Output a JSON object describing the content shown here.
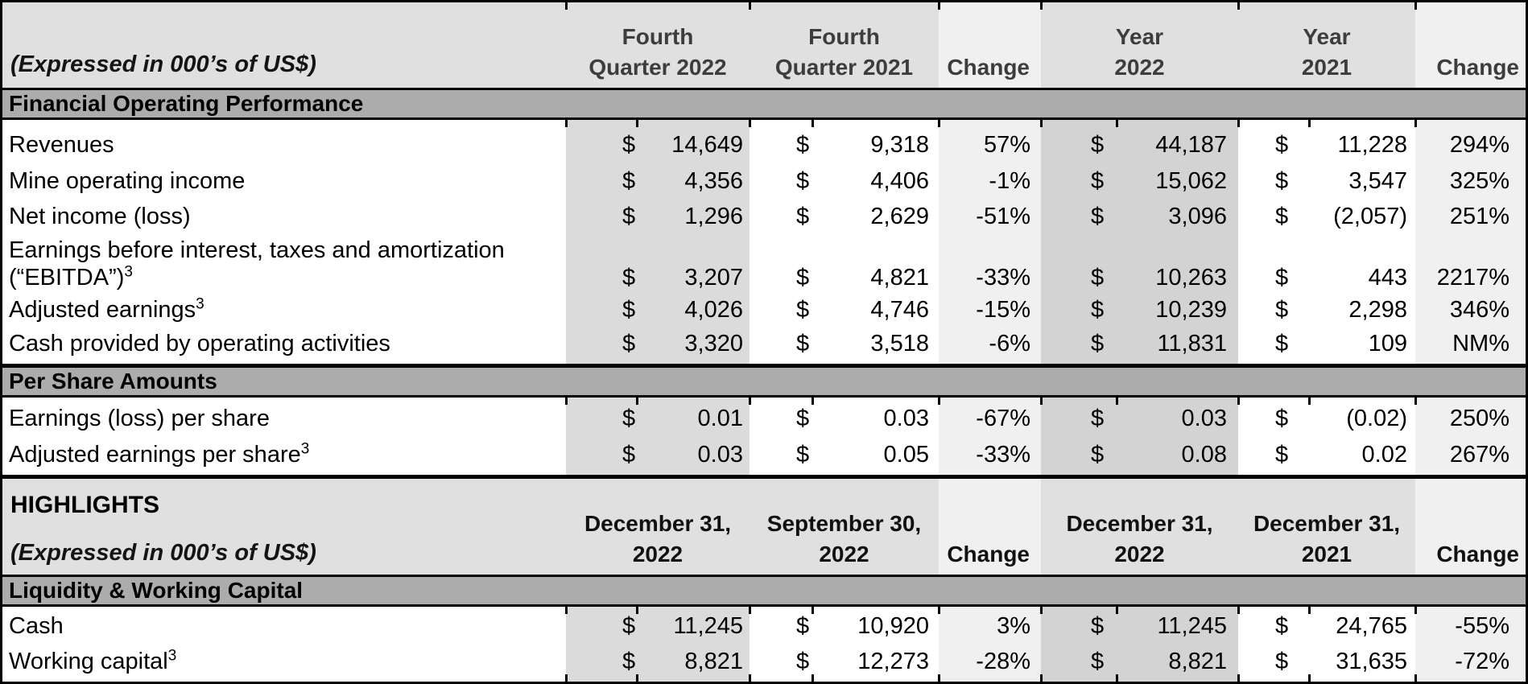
{
  "currency": "$",
  "colors": {
    "header_band": "#E0E0E0",
    "section_band": "#ACACAC",
    "primary_column_band": "#DBDBDB",
    "year_column_band": "#D3D3D3",
    "change_column_band": "#F0F0F0",
    "border": "#000000"
  },
  "table1": {
    "header": {
      "label": "(Expressed in 000’s of US$)",
      "columns": [
        {
          "line1": "Fourth",
          "line2": "Quarter 2022"
        },
        {
          "line1": "Fourth",
          "line2": "Quarter 2021"
        },
        {
          "label": "Change"
        },
        {
          "line1": "Year",
          "line2": "2022"
        },
        {
          "line1": "Year",
          "line2": "2021"
        },
        {
          "label": "Change"
        }
      ]
    },
    "sections": [
      {
        "title": "Financial Operating Performance",
        "rows": [
          {
            "label": "Revenues",
            "values": [
              "14,649",
              "9,318",
              "57%",
              "44,187",
              "11,228",
              "294%"
            ]
          },
          {
            "label": "Mine operating income",
            "values": [
              "4,356",
              "4,406",
              "-1%",
              "15,062",
              "3,547",
              "325%"
            ]
          },
          {
            "label": "Net income (loss)",
            "values": [
              "1,296",
              "2,629",
              "-51%",
              "3,096",
              "(2,057)",
              "251%"
            ]
          },
          {
            "label_line1": "Earnings before interest, taxes and amortization",
            "label": "(“EBITDA”)",
            "sup": "3",
            "values": [
              "3,207",
              "4,821",
              "-33%",
              "10,263",
              "443",
              "2217%"
            ]
          },
          {
            "label": "Adjusted earnings",
            "sup": "3",
            "values": [
              "4,026",
              "4,746",
              "-15%",
              "10,239",
              "2,298",
              "346%"
            ]
          },
          {
            "label": "Cash provided by operating activities",
            "values": [
              "3,320",
              "3,518",
              "-6%",
              "11,831",
              "109",
              "NM%"
            ]
          }
        ]
      },
      {
        "title": "Per Share Amounts",
        "rows": [
          {
            "label": "Earnings (loss) per share",
            "values": [
              "0.01",
              "0.03",
              "-67%",
              "0.03",
              "(0.02)",
              "250%"
            ]
          },
          {
            "label": "Adjusted earnings per share",
            "sup": "3",
            "values": [
              "0.03",
              "0.05",
              "-33%",
              "0.08",
              "0.02",
              "267%"
            ]
          }
        ]
      }
    ]
  },
  "table2": {
    "header": {
      "title": "HIGHLIGHTS",
      "label": "(Expressed in 000’s of US$)",
      "columns": [
        {
          "line1": "December 31,",
          "line2": "2022"
        },
        {
          "line1": "September 30,",
          "line2": "2022"
        },
        {
          "label": "Change"
        },
        {
          "line1": "December 31,",
          "line2": "2022"
        },
        {
          "line1": "December 31,",
          "line2": "2021"
        },
        {
          "label": "Change"
        }
      ]
    },
    "sections": [
      {
        "title": "Liquidity & Working Capital",
        "rows": [
          {
            "label": "Cash",
            "values": [
              "11,245",
              "10,920",
              "3%",
              "11,245",
              "24,765",
              "-55%"
            ]
          },
          {
            "label": "Working capital",
            "sup": "3",
            "values": [
              "8,821",
              "12,273",
              "-28%",
              "8,821",
              "31,635",
              "-72%"
            ]
          }
        ]
      }
    ]
  }
}
